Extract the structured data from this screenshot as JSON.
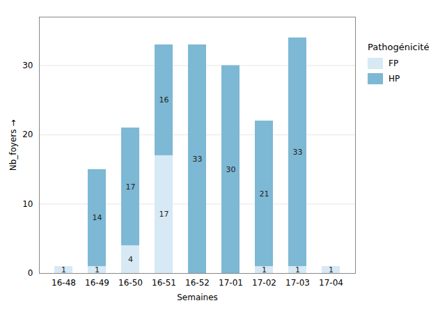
{
  "chart_data": {
    "type": "bar",
    "stacked": true,
    "categories": [
      "16-48",
      "16-49",
      "16-50",
      "16-51",
      "16-52",
      "17-01",
      "17-02",
      "17-03",
      "17-04"
    ],
    "series": [
      {
        "name": "FP",
        "color": "#d6e9f5",
        "values": [
          1,
          1,
          4,
          17,
          0,
          0,
          1,
          1,
          1
        ],
        "value_labels": [
          "1",
          "1",
          "4",
          "17",
          null,
          null,
          "1",
          "1",
          "1"
        ]
      },
      {
        "name": "HP",
        "color": "#7db8d4",
        "values": [
          0,
          14,
          17,
          16,
          33,
          30,
          21,
          33,
          0
        ],
        "value_labels": [
          null,
          "14",
          "17",
          "16",
          "33",
          "30",
          "21",
          "33",
          null
        ]
      }
    ],
    "data_labels": true,
    "xlabel": "Semaines",
    "ylabel": "Nb_foyers",
    "legend_title": "Pathogénicité",
    "legend": "right",
    "ylim": [
      0,
      37
    ],
    "yticks": [
      0,
      10,
      20,
      30
    ],
    "grid": true
  }
}
